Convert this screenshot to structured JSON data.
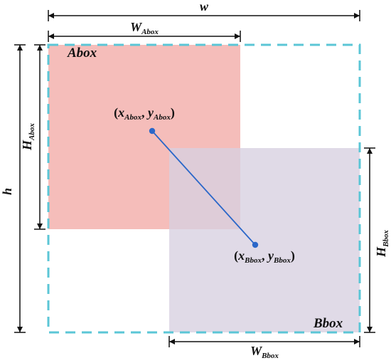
{
  "diagram": {
    "title": "",
    "labels": {
      "w": "w",
      "h": "h",
      "w_abox_main": "W",
      "w_abox_sub": "Abox",
      "h_abox_main": "H",
      "h_abox_sub": "Abox",
      "w_bbox_main": "W",
      "w_bbox_sub": "Bbox",
      "h_bbox_main": "H",
      "h_bbox_sub": "Bbox",
      "abox": "Abox",
      "bbox": "Bbox",
      "center_a": {
        "open": "(",
        "x_main": "x",
        "x_sub": "Abox",
        "sep": ", ",
        "y_main": "y",
        "y_sub": "Abox",
        "close": ")"
      },
      "center_b": {
        "open": "(",
        "x_main": "x",
        "x_sub": "Bbox",
        "sep": ", ",
        "y_main": "y",
        "y_sub": "Bbox",
        "close": ")"
      }
    },
    "colors": {
      "abox_fill": "#f2aaa6",
      "bbox_fill": "#d7cfe0",
      "enclosing_border": "#5bc6d6",
      "center_line": "#2b67c9",
      "dimension": "#111111",
      "text": "#111111"
    }
  }
}
